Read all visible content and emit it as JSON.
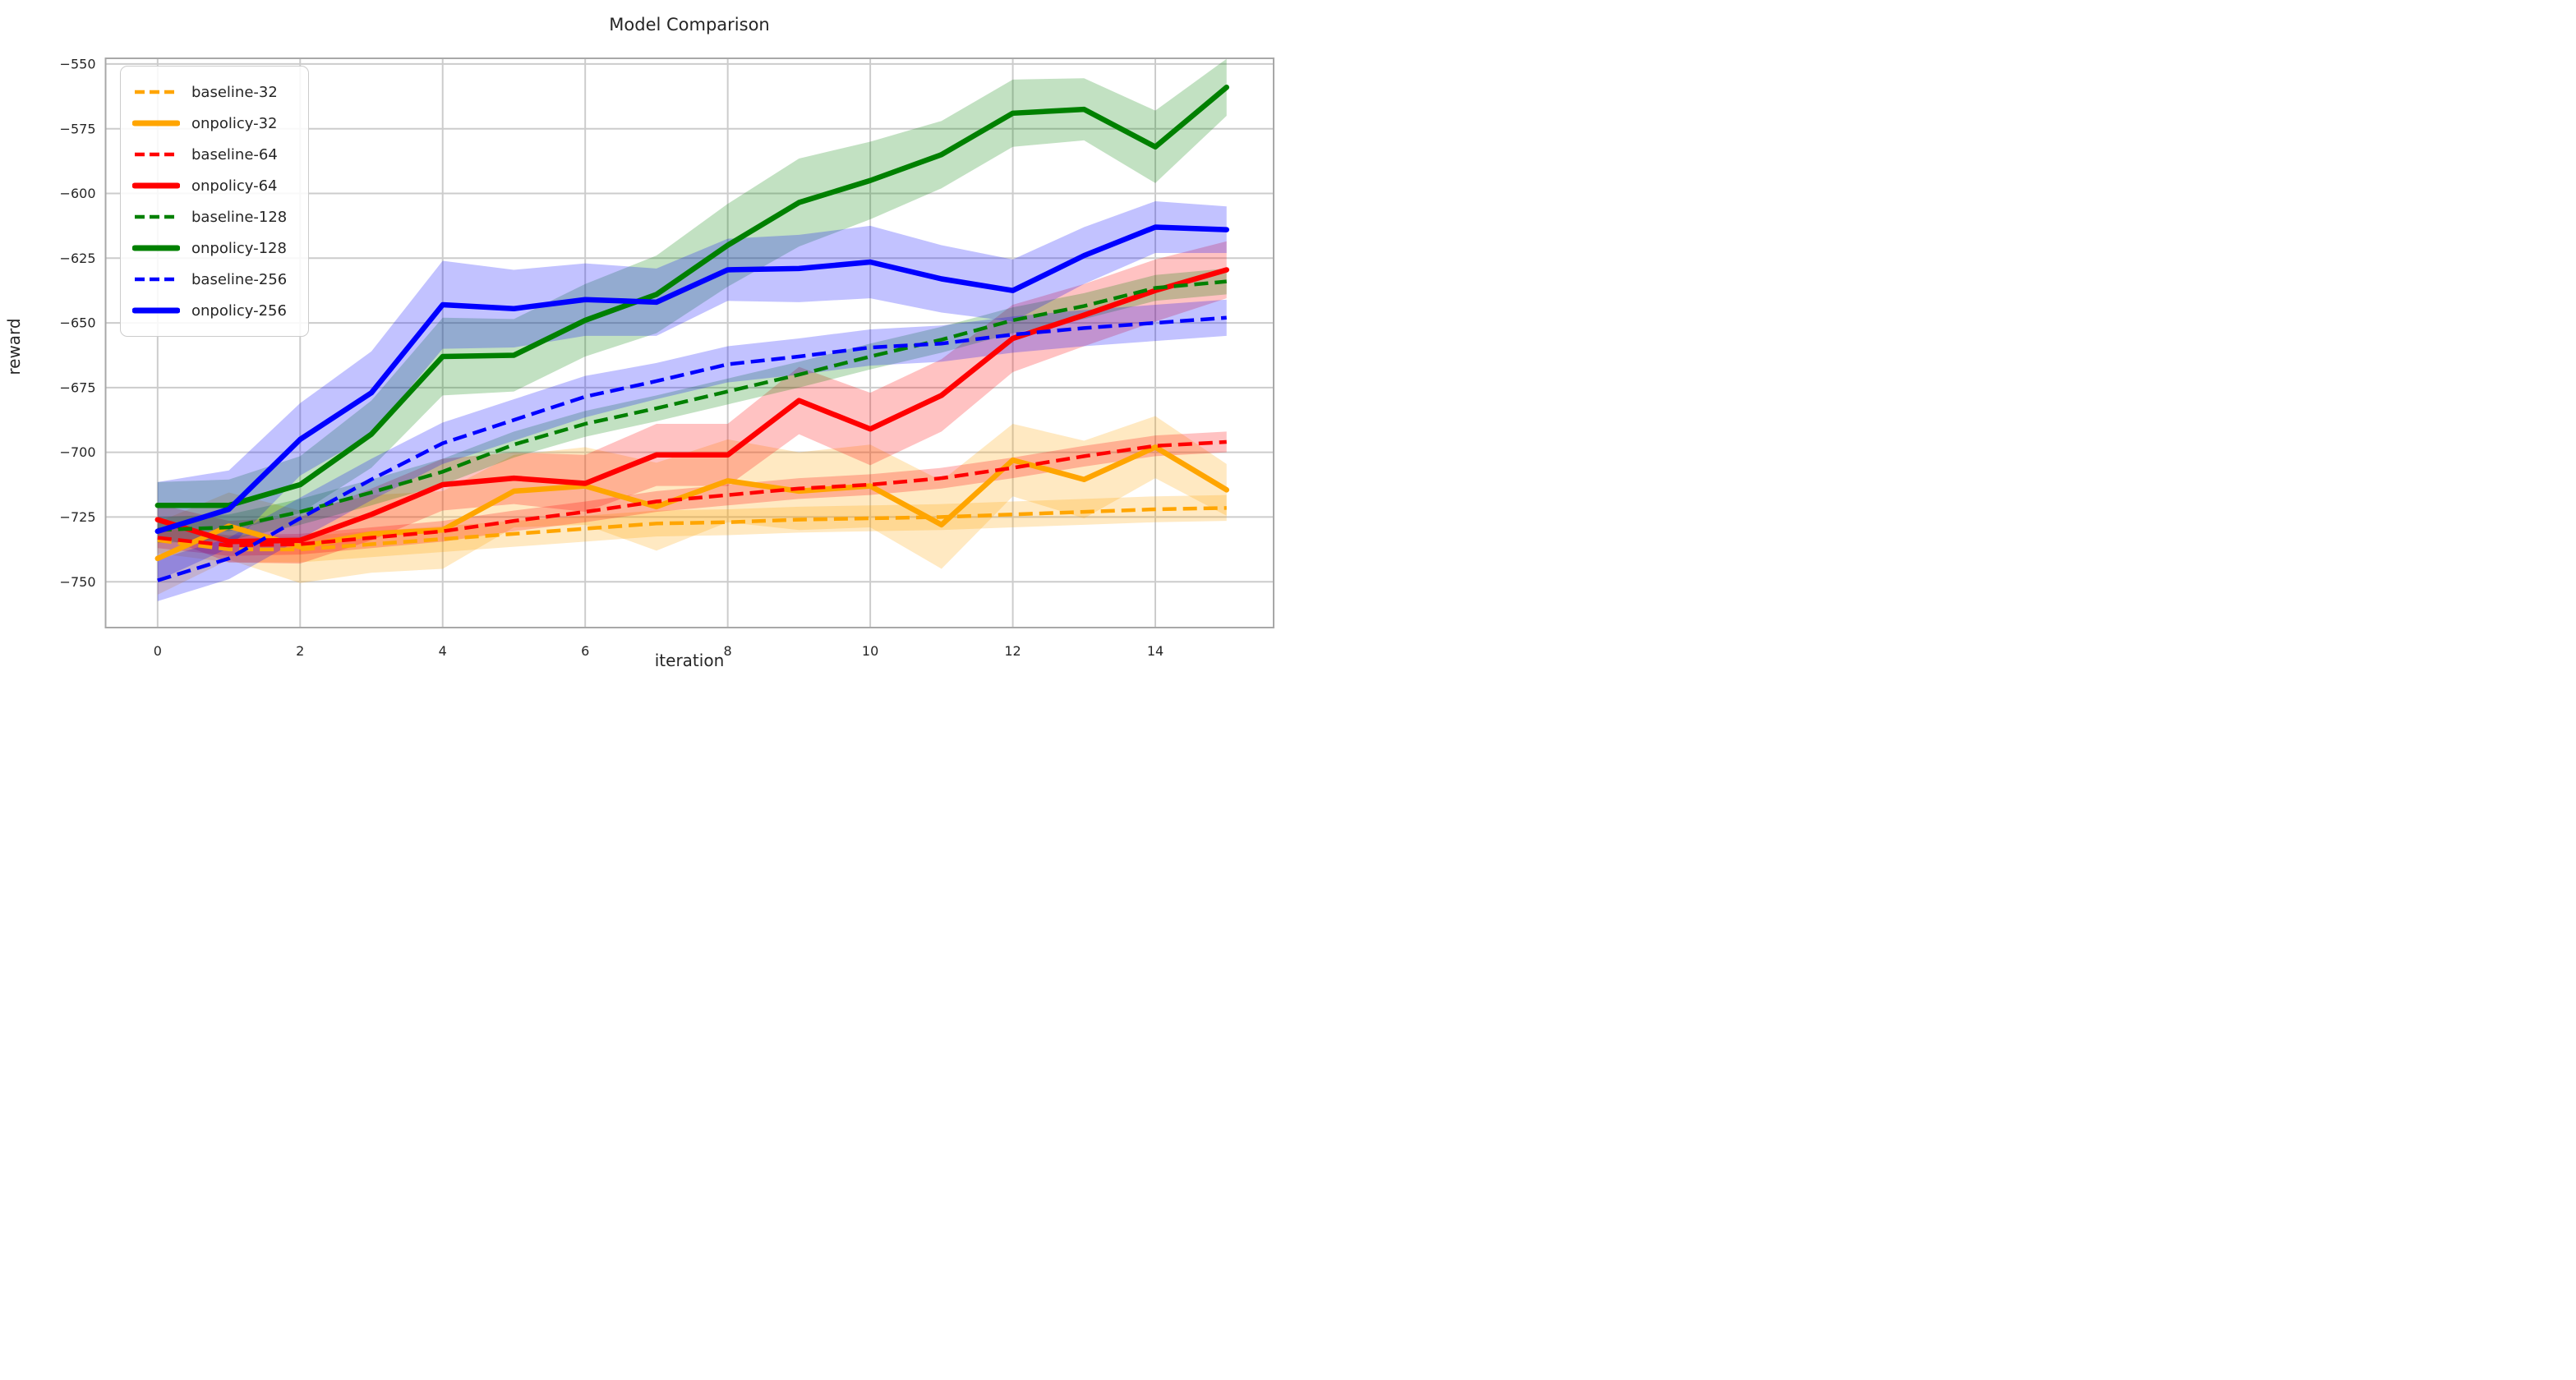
{
  "figure": {
    "title": "Model Comparison"
  },
  "chart_data": {
    "type": "line",
    "title": "Model Comparison",
    "xlabel": "iteration",
    "ylabel": "reward",
    "grid": true,
    "legend_position": "upper left",
    "xlim": [
      -0.73,
      15.66
    ],
    "ylim": [
      -767.7,
      -547.8
    ],
    "x": [
      0,
      1,
      2,
      3,
      4,
      5,
      6,
      7,
      8,
      9,
      10,
      11,
      12,
      13,
      14,
      15
    ],
    "xticks": {
      "values": [
        0,
        2,
        4,
        6,
        8,
        10,
        12,
        14
      ],
      "labels": [
        "0",
        "2",
        "4",
        "6",
        "8",
        "10",
        "12",
        "14"
      ]
    },
    "yticks": {
      "values": [
        -550,
        -575,
        -600,
        -625,
        -650,
        -675,
        -700,
        -725,
        -750
      ],
      "labels": [
        "−550",
        "−575",
        "−600",
        "−625",
        "−650",
        "−675",
        "−700",
        "−725",
        "−750"
      ]
    },
    "styles": {
      "background": "#ffffff",
      "grid_color": "#cccccc",
      "spine_color": "#a8a8a8",
      "text_color": "#262626",
      "band_alpha": 0.24,
      "solid_width": 6.5,
      "dash_width": 4.5,
      "dash_pattern": "17 8"
    },
    "series": [
      {
        "name": "baseline-32",
        "color": "#FFA500",
        "dash": true,
        "values": [
          -734,
          -737.5,
          -737.5,
          -735.5,
          -733.5,
          -731.5,
          -729.5,
          -727.5,
          -727,
          -726,
          -725.5,
          -725,
          -724,
          -723,
          -722,
          -721.5
        ],
        "band": [
          5,
          5,
          5,
          5,
          5,
          5,
          5,
          5,
          5,
          5,
          5,
          5,
          5,
          5,
          5,
          5
        ]
      },
      {
        "name": "onpolicy-32",
        "color": "#FFA500",
        "dash": false,
        "values": [
          -741,
          -728.5,
          -736.5,
          -731.5,
          -730,
          -715,
          -713,
          -721,
          -711,
          -715,
          -713,
          -728,
          -703,
          -710.5,
          -698,
          -714.5
        ],
        "band": [
          14,
          13,
          14,
          15,
          15,
          14,
          15,
          17,
          16,
          15,
          16,
          17,
          14,
          15,
          12,
          10
        ]
      },
      {
        "name": "baseline-64",
        "color": "#FF0000",
        "dash": true,
        "values": [
          -733,
          -736,
          -735.5,
          -733,
          -730.5,
          -726.5,
          -723,
          -719,
          -716.5,
          -714,
          -712.5,
          -710,
          -706,
          -701.5,
          -697.5,
          -696
        ],
        "band": [
          4,
          4,
          4,
          4,
          4,
          4,
          4,
          4,
          4,
          4,
          4,
          4,
          4,
          4,
          4,
          4
        ]
      },
      {
        "name": "onpolicy-64",
        "color": "#FF0000",
        "dash": false,
        "values": [
          -726,
          -734.5,
          -734,
          -724,
          -712.5,
          -710,
          -712,
          -701,
          -701,
          -680,
          -691,
          -678,
          -656,
          -647,
          -637.5,
          -629.5
        ],
        "band": [
          6,
          8,
          9,
          10,
          10,
          10,
          11,
          12,
          12,
          13,
          14,
          14,
          13,
          12,
          12,
          11
        ]
      },
      {
        "name": "baseline-128",
        "color": "#008000",
        "dash": true,
        "values": [
          -730,
          -729,
          -723,
          -715.5,
          -707.5,
          -697,
          -689,
          -683,
          -676.5,
          -670,
          -663,
          -656.5,
          -649,
          -643.5,
          -636.5,
          -634
        ],
        "band": [
          5,
          5,
          5,
          5,
          5,
          5,
          5,
          5,
          5,
          5,
          5,
          5,
          5,
          5,
          5,
          5
        ]
      },
      {
        "name": "onpolicy-128",
        "color": "#008000",
        "dash": false,
        "values": [
          -720.5,
          -720.5,
          -712.5,
          -693,
          -663,
          -662.5,
          -649,
          -639,
          -620,
          -603.5,
          -595,
          -585,
          -569,
          -567.5,
          -582,
          -559
        ],
        "band": [
          9,
          10,
          11,
          13,
          15,
          14,
          14,
          15,
          16,
          17,
          15,
          13,
          13,
          12,
          14,
          11
        ]
      },
      {
        "name": "baseline-256",
        "color": "#0000FF",
        "dash": true,
        "values": [
          -749.5,
          -741,
          -725.5,
          -710.5,
          -696.5,
          -687.5,
          -678.5,
          -672.5,
          -666,
          -663,
          -659.5,
          -658,
          -654.5,
          -652,
          -650,
          -648
        ],
        "band": [
          8,
          8,
          8,
          8,
          8,
          8,
          8,
          7,
          7,
          7,
          7,
          7,
          7,
          7,
          7,
          7
        ]
      },
      {
        "name": "onpolicy-256",
        "color": "#0000FF",
        "dash": false,
        "values": [
          -730.5,
          -722,
          -695,
          -677,
          -643,
          -644.5,
          -641,
          -642,
          -629.5,
          -629,
          -626.5,
          -633,
          -637.5,
          -624,
          -613,
          -614
        ],
        "band": [
          19,
          15,
          14,
          16,
          17,
          15,
          14,
          13,
          12,
          13,
          14,
          13,
          12,
          11,
          10,
          9
        ]
      }
    ]
  }
}
